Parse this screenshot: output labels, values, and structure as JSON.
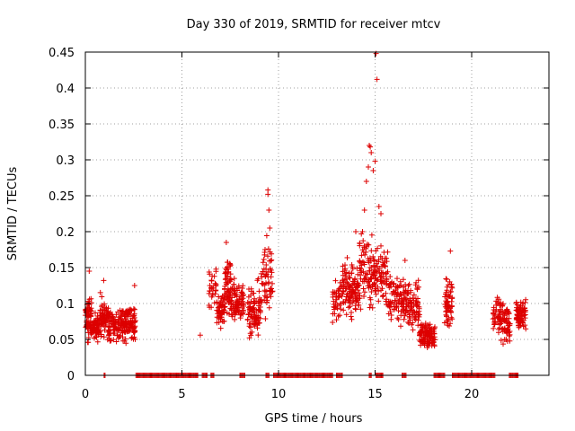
{
  "chart_data": {
    "type": "scatter",
    "title": "Day 330 of 2019, SRMTID for receiver mtcv",
    "xlabel": "GPS time / hours",
    "ylabel": "SRMTID / TECUs",
    "xlim": [
      0,
      24
    ],
    "ylim": [
      0,
      0.45
    ],
    "xticks": [
      0,
      5,
      10,
      15,
      20
    ],
    "yticks": [
      0,
      0.05,
      0.1,
      0.15,
      0.2,
      0.25,
      0.3,
      0.35,
      0.4,
      0.45
    ],
    "xtick_labels": [
      "0",
      "5",
      "10",
      "15",
      "20"
    ],
    "ytick_labels": [
      "0",
      "0.05",
      "0.1",
      "0.15",
      "0.2",
      "0.25",
      "0.3",
      "0.35",
      "0.4",
      "0.45"
    ],
    "grid": true,
    "marker": "+",
    "color": "#dd0000",
    "series": [
      {
        "name": "SRMTID",
        "clusters": [
          {
            "x_start": 0.0,
            "x_end": 0.35,
            "count": 70,
            "y_min": 0.04,
            "y_max": 0.12
          },
          {
            "x_start": 0.35,
            "x_end": 0.75,
            "count": 55,
            "y_min": 0.04,
            "y_max": 0.09
          },
          {
            "x_start": 0.75,
            "x_end": 1.15,
            "count": 60,
            "y_min": 0.04,
            "y_max": 0.12
          },
          {
            "x_start": 1.15,
            "x_end": 2.05,
            "count": 120,
            "y_min": 0.035,
            "y_max": 0.1
          },
          {
            "x_start": 2.05,
            "x_end": 2.6,
            "count": 85,
            "y_min": 0.035,
            "y_max": 0.11
          },
          {
            "x_start": 6.4,
            "x_end": 6.8,
            "count": 30,
            "y_min": 0.07,
            "y_max": 0.16
          },
          {
            "x_start": 6.8,
            "x_end": 7.2,
            "count": 55,
            "y_min": 0.06,
            "y_max": 0.12
          },
          {
            "x_start": 7.2,
            "x_end": 7.55,
            "count": 60,
            "y_min": 0.07,
            "y_max": 0.18
          },
          {
            "x_start": 7.55,
            "x_end": 8.2,
            "count": 85,
            "y_min": 0.06,
            "y_max": 0.14
          },
          {
            "x_start": 8.4,
            "x_end": 9.1,
            "count": 95,
            "y_min": 0.04,
            "y_max": 0.14
          },
          {
            "x_start": 9.1,
            "x_end": 9.7,
            "count": 60,
            "y_min": 0.06,
            "y_max": 0.2
          },
          {
            "x_start": 12.8,
            "x_end": 13.3,
            "count": 40,
            "y_min": 0.07,
            "y_max": 0.14
          },
          {
            "x_start": 13.3,
            "x_end": 14.2,
            "count": 120,
            "y_min": 0.07,
            "y_max": 0.17
          },
          {
            "x_start": 14.2,
            "x_end": 14.9,
            "count": 80,
            "y_min": 0.07,
            "y_max": 0.22
          },
          {
            "x_start": 14.9,
            "x_end": 15.7,
            "count": 80,
            "y_min": 0.08,
            "y_max": 0.2
          },
          {
            "x_start": 15.7,
            "x_end": 16.5,
            "count": 85,
            "y_min": 0.06,
            "y_max": 0.15
          },
          {
            "x_start": 16.5,
            "x_end": 17.3,
            "count": 90,
            "y_min": 0.045,
            "y_max": 0.14
          },
          {
            "x_start": 17.3,
            "x_end": 18.1,
            "count": 110,
            "y_min": 0.03,
            "y_max": 0.08
          },
          {
            "x_start": 18.6,
            "x_end": 19.0,
            "count": 60,
            "y_min": 0.05,
            "y_max": 0.15
          },
          {
            "x_start": 21.1,
            "x_end": 21.5,
            "count": 45,
            "y_min": 0.05,
            "y_max": 0.12
          },
          {
            "x_start": 21.5,
            "x_end": 22.0,
            "count": 60,
            "y_min": 0.03,
            "y_max": 0.12
          },
          {
            "x_start": 22.3,
            "x_end": 22.8,
            "count": 80,
            "y_min": 0.06,
            "y_max": 0.11
          }
        ],
        "outliers": [
          {
            "x": 0.2,
            "y": 0.145
          },
          {
            "x": 0.95,
            "y": 0.132
          },
          {
            "x": 2.55,
            "y": 0.125
          },
          {
            "x": 5.95,
            "y": 0.056
          },
          {
            "x": 7.3,
            "y": 0.185
          },
          {
            "x": 9.45,
            "y": 0.258
          },
          {
            "x": 9.45,
            "y": 0.252
          },
          {
            "x": 9.5,
            "y": 0.23
          },
          {
            "x": 9.55,
            "y": 0.205
          },
          {
            "x": 9.3,
            "y": 0.175
          },
          {
            "x": 14.0,
            "y": 0.2
          },
          {
            "x": 14.35,
            "y": 0.2
          },
          {
            "x": 14.45,
            "y": 0.23
          },
          {
            "x": 14.55,
            "y": 0.27
          },
          {
            "x": 14.65,
            "y": 0.29
          },
          {
            "x": 14.7,
            "y": 0.32
          },
          {
            "x": 14.75,
            "y": 0.318
          },
          {
            "x": 14.8,
            "y": 0.31
          },
          {
            "x": 14.9,
            "y": 0.285
          },
          {
            "x": 15.0,
            "y": 0.298
          },
          {
            "x": 15.05,
            "y": 0.448
          },
          {
            "x": 15.1,
            "y": 0.412
          },
          {
            "x": 15.2,
            "y": 0.235
          },
          {
            "x": 15.3,
            "y": 0.225
          },
          {
            "x": 16.55,
            "y": 0.16
          },
          {
            "x": 18.9,
            "y": 0.173
          }
        ],
        "zero_ranges": [
          [
            0.97,
            1.03
          ],
          [
            2.62,
            5.85
          ],
          [
            6.05,
            6.3
          ],
          [
            6.5,
            6.65
          ],
          [
            8.0,
            8.25
          ],
          [
            9.35,
            9.5
          ],
          [
            9.75,
            12.8
          ],
          [
            13.0,
            13.3
          ],
          [
            14.7,
            14.8
          ],
          [
            15.05,
            15.4
          ],
          [
            16.4,
            16.6
          ],
          [
            18.05,
            18.6
          ],
          [
            19.0,
            21.2
          ],
          [
            21.95,
            22.4
          ]
        ]
      }
    ]
  }
}
